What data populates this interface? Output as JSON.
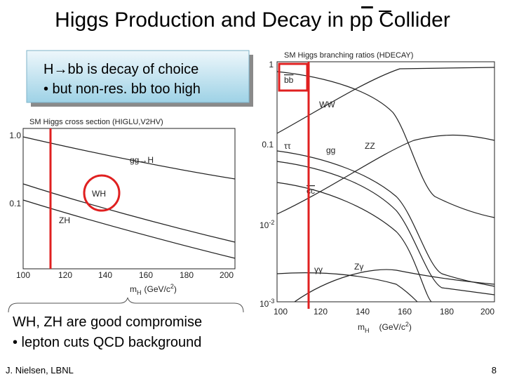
{
  "header": {
    "title": [
      "Higgs Production and Decay in p",
      "p",
      " Collider"
    ]
  },
  "callout_top": {
    "lines": [
      "H→bb is decay of choice",
      "• but non-res. bb too high"
    ]
  },
  "callout_bottom": {
    "lines": [
      "WH, ZH are good compromise",
      "• lepton cuts QCD background"
    ]
  },
  "cross_section_plot": {
    "title": "SM Higgs cross section (HIGLU,V2HV)",
    "y_labels": [
      "1.0",
      "0.1"
    ],
    "x_labels": [
      "100",
      "120",
      "140",
      "160",
      "180",
      "200"
    ],
    "x_label": [
      "m",
      "H",
      "(GeV/c",
      "2",
      ")"
    ],
    "curve_labels": [
      "gg→H",
      "WH",
      "ZH"
    ]
  },
  "branching_plot": {
    "title": "SM Higgs branching ratios (HDECAY)",
    "y_labels": [
      "1",
      "0.1",
      "10",
      "-2",
      "10",
      "-3"
    ],
    "x_labels": [
      "100",
      "120",
      "140",
      "160",
      "180",
      "200"
    ],
    "x_label": [
      "m",
      "H",
      "(GeV/c",
      "2",
      ")"
    ],
    "curve_labels": [
      "bb",
      "WW",
      "ττ",
      "gg",
      "ZZ",
      "cc",
      "γγ",
      "Zγ"
    ]
  },
  "footer": {
    "author": "J. Nielsen, LBNL",
    "page": "8"
  }
}
